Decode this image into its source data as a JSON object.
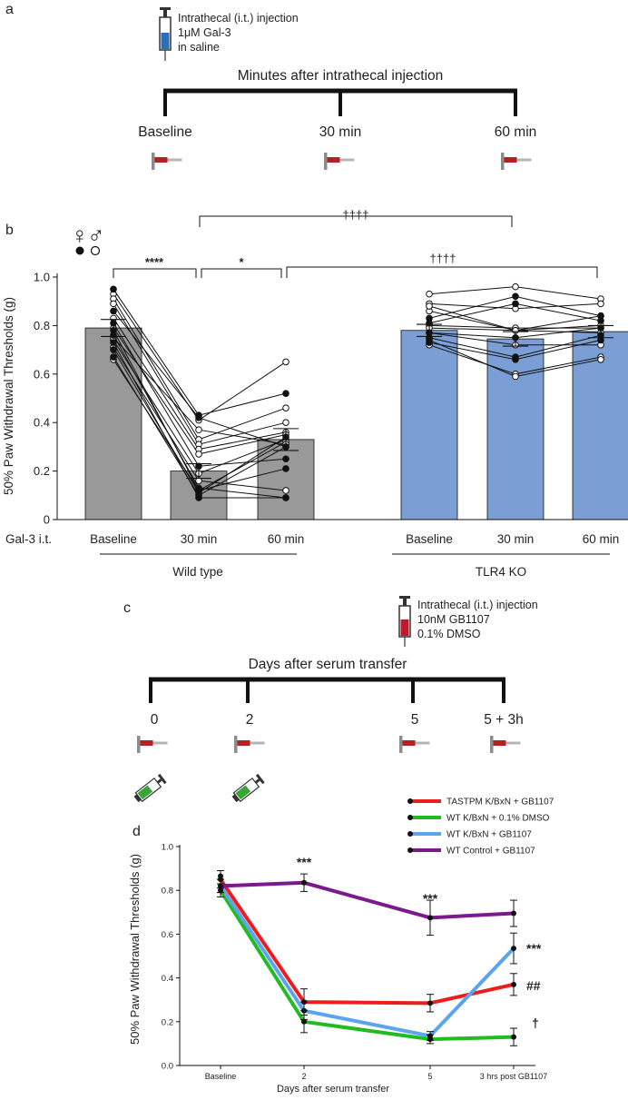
{
  "panel_a": {
    "letter": "a",
    "injection_text": [
      "Intrathecal (i.t.) injection",
      "1μM Gal-3",
      "in saline"
    ],
    "timeline_title": "Minutes after intrathecal injection",
    "timepoints": [
      "Baseline",
      "30 min",
      "60 min"
    ],
    "colors": {
      "syringe_fill": "#2a6fb5",
      "probe": "#b22222"
    }
  },
  "panel_c": {
    "letter": "c",
    "injection_text": [
      "Intrathecal (i.t.) injection",
      "10nM GB1107",
      "0.1% DMSO"
    ],
    "timeline_title": "Days after serum transfer",
    "timepoints": [
      "0",
      "2",
      "5",
      "5 + 3h"
    ],
    "colors": {
      "syringe_fill": "#c0182c",
      "serum_syringe": "#3aa536"
    }
  },
  "chart_data": [
    {
      "id": "b",
      "letter": "b",
      "type": "bar",
      "ylabel": "50% Paw Withdrawal Thresholds (g)",
      "ylim": [
        0,
        1.0
      ],
      "yticks": [
        "0",
        "0.2",
        "0.4",
        "0.6",
        "0.8",
        "1.0"
      ],
      "xlabel_prefix": "Gal-3 i.t.",
      "categories": [
        "Baseline",
        "30 min",
        "60 min",
        "Baseline",
        "30 min",
        "60 min"
      ],
      "groups": [
        "Wild type",
        "TLR4 KO"
      ],
      "values": [
        0.79,
        0.2,
        0.33,
        0.78,
        0.745,
        0.775
      ],
      "sem": [
        0.035,
        0.03,
        0.045,
        0.025,
        0.03,
        0.025
      ],
      "bar_colors": [
        "#999999",
        "#999999",
        "#999999",
        "#7b9fd4",
        "#7b9fd4",
        "#7b9fd4"
      ],
      "legend": {
        "female": "♀",
        "male": "♂"
      },
      "significance": [
        "****",
        "*",
        "††††",
        "††††"
      ],
      "wt_female_lines": [
        [
          0.95,
          0.43,
          0.52
        ],
        [
          0.86,
          0.42,
          0.3
        ],
        [
          0.81,
          0.22,
          0.25
        ],
        [
          0.78,
          0.12,
          0.21
        ],
        [
          0.73,
          0.09,
          0.09
        ],
        [
          0.67,
          0.1,
          0.3
        ],
        [
          0.7,
          0.11,
          0.34
        ],
        [
          0.76,
          0.13,
          0.09
        ]
      ],
      "wt_male_lines": [
        [
          0.93,
          0.41,
          0.65
        ],
        [
          0.91,
          0.33,
          0.46
        ],
        [
          0.89,
          0.31,
          0.4
        ],
        [
          0.83,
          0.29,
          0.36
        ],
        [
          0.79,
          0.27,
          0.35
        ],
        [
          0.74,
          0.19,
          0.33
        ],
        [
          0.71,
          0.16,
          0.12
        ],
        [
          0.66,
          0.12,
          0.32
        ],
        [
          0.75,
          0.37,
          0.31
        ]
      ],
      "ko_female_lines": [
        [
          0.83,
          0.92,
          0.84
        ],
        [
          0.81,
          0.89,
          0.82
        ],
        [
          0.77,
          0.75,
          0.79
        ],
        [
          0.75,
          0.67,
          0.76
        ],
        [
          0.73,
          0.66,
          0.74
        ]
      ],
      "ko_male_lines": [
        [
          0.93,
          0.96,
          0.91
        ],
        [
          0.89,
          0.87,
          0.89
        ],
        [
          0.86,
          0.78,
          0.84
        ],
        [
          0.8,
          0.79,
          0.79
        ],
        [
          0.79,
          0.78,
          0.77
        ],
        [
          0.77,
          0.72,
          0.72
        ],
        [
          0.72,
          0.6,
          0.67
        ],
        [
          0.74,
          0.59,
          0.66
        ],
        [
          0.88,
          0.78,
          0.8
        ]
      ]
    },
    {
      "id": "d",
      "letter": "d",
      "type": "line",
      "ylabel": "50% Paw Withdrawal Thresholds (g)",
      "xlabel": "Days after serum transfer",
      "categories": [
        "Baseline",
        "2",
        "5",
        "3 hrs post GB1107"
      ],
      "ylim": [
        0,
        1.0
      ],
      "yticks": [
        "0.0",
        "0.2",
        "0.4",
        "0.6",
        "0.8",
        "1.0"
      ],
      "series": [
        {
          "name": "TASTPM K/BxN + GB1107",
          "color": "#ee1c1c",
          "values": [
            0.85,
            0.29,
            0.285,
            0.37
          ],
          "err": [
            0.04,
            0.06,
            0.04,
            0.05
          ]
        },
        {
          "name": "WT K/BxN + 0.1% DMSO",
          "color": "#22bb22",
          "values": [
            0.8,
            0.2,
            0.12,
            0.13
          ],
          "err": [
            0.03,
            0.05,
            0.02,
            0.04
          ]
        },
        {
          "name": "WT K/BxN + GB1107",
          "color": "#5aa5ee",
          "values": [
            0.82,
            0.25,
            0.135,
            0.535
          ],
          "err": [
            0.03,
            0.04,
            0.02,
            0.07
          ]
        },
        {
          "name": "WT Control + GB1107",
          "color": "#7a1a8c",
          "values": [
            0.82,
            0.835,
            0.675,
            0.695
          ],
          "err": [
            0.03,
            0.04,
            0.08,
            0.06
          ]
        }
      ],
      "baseline_top_point": 0.865,
      "annotations": [
        "***",
        "***",
        "***",
        "##",
        "†"
      ]
    }
  ]
}
